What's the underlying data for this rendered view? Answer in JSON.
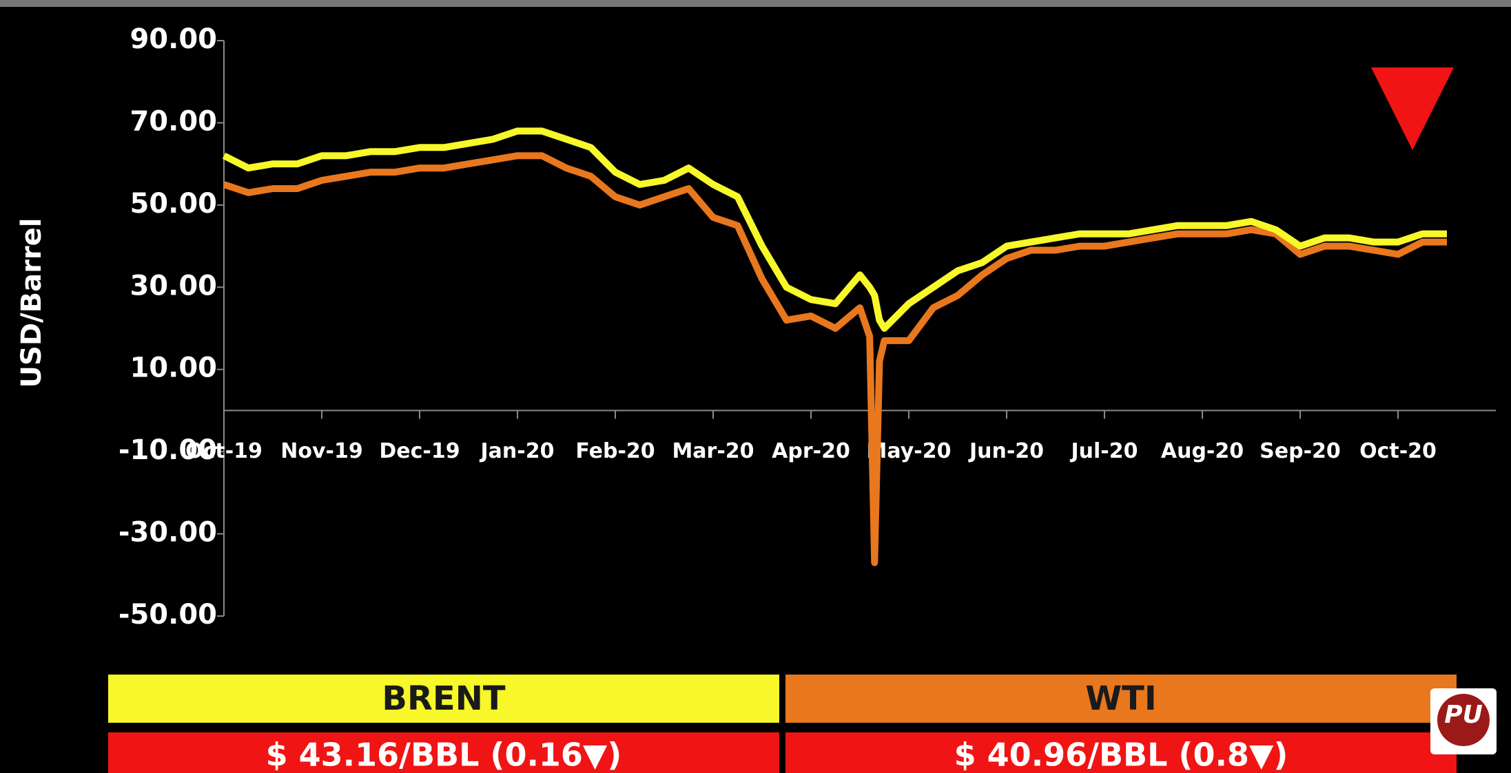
{
  "chart_data": {
    "type": "line",
    "y_label": "USD/Barrel",
    "ylim": [
      -50,
      90
    ],
    "yticks": [
      {
        "value": 90,
        "label": "90.00"
      },
      {
        "value": 70,
        "label": "70.00"
      },
      {
        "value": 50,
        "label": "50.00"
      },
      {
        "value": 30,
        "label": "30.00"
      },
      {
        "value": 10,
        "label": "10.00"
      },
      {
        "value": -10,
        "label": "-10.00"
      },
      {
        "value": -30,
        "label": "-30.00"
      },
      {
        "value": -50,
        "label": "-50.00"
      }
    ],
    "xlim": [
      0,
      13
    ],
    "xticks": [
      {
        "value": 0,
        "label": "Oct-19"
      },
      {
        "value": 1,
        "label": "Nov-19"
      },
      {
        "value": 2,
        "label": "Dec-19"
      },
      {
        "value": 3,
        "label": "Jan-20"
      },
      {
        "value": 4,
        "label": "Feb-20"
      },
      {
        "value": 5,
        "label": "Mar-20"
      },
      {
        "value": 6,
        "label": "Apr-20"
      },
      {
        "value": 7,
        "label": "May-20"
      },
      {
        "value": 8,
        "label": "Jun-20"
      },
      {
        "value": 9,
        "label": "Jul-20"
      },
      {
        "value": 10,
        "label": "Aug-20"
      },
      {
        "value": 11,
        "label": "Sep-20"
      },
      {
        "value": 12,
        "label": "Oct-20"
      }
    ],
    "x": [
      0,
      0.25,
      0.5,
      0.75,
      1,
      1.25,
      1.5,
      1.75,
      2,
      2.25,
      2.5,
      2.75,
      3,
      3.25,
      3.5,
      3.75,
      4,
      4.25,
      4.5,
      4.75,
      5,
      5.25,
      5.5,
      5.75,
      6,
      6.25,
      6.5,
      6.6,
      6.65,
      6.7,
      6.75,
      7,
      7.25,
      7.5,
      7.75,
      8,
      8.25,
      8.5,
      8.75,
      9,
      9.25,
      9.5,
      9.75,
      10,
      10.25,
      10.5,
      10.75,
      11,
      11.25,
      11.5,
      11.75,
      12,
      12.25,
      12.5
    ],
    "series": [
      {
        "name": "BRENT",
        "color": "#f7f72a",
        "price": "$ 43.16/BBL (0.16▼)",
        "values": [
          62,
          59,
          60,
          60,
          62,
          62,
          63,
          63,
          64,
          64,
          65,
          66,
          68,
          68,
          66,
          64,
          58,
          55,
          56,
          59,
          55,
          52,
          40,
          30,
          27,
          26,
          33,
          30,
          28,
          22,
          20,
          26,
          30,
          34,
          36,
          40,
          41,
          42,
          43,
          43,
          43,
          44,
          45,
          45,
          45,
          46,
          44,
          40,
          42,
          42,
          41,
          41,
          43,
          43
        ]
      },
      {
        "name": "WTI",
        "color": "#e8771e",
        "price": "$ 40.96/BBL (0.8▼)",
        "values": [
          55,
          53,
          54,
          54,
          56,
          57,
          58,
          58,
          59,
          59,
          60,
          61,
          62,
          62,
          59,
          57,
          52,
          50,
          52,
          54,
          47,
          45,
          32,
          22,
          23,
          20,
          25,
          18,
          -37,
          12,
          17,
          17,
          25,
          28,
          33,
          37,
          39,
          39,
          40,
          40,
          41,
          42,
          43,
          43,
          43,
          44,
          43,
          38,
          40,
          40,
          39,
          38,
          41,
          41
        ]
      }
    ],
    "price_color": "#f01414",
    "logo": "PU"
  }
}
